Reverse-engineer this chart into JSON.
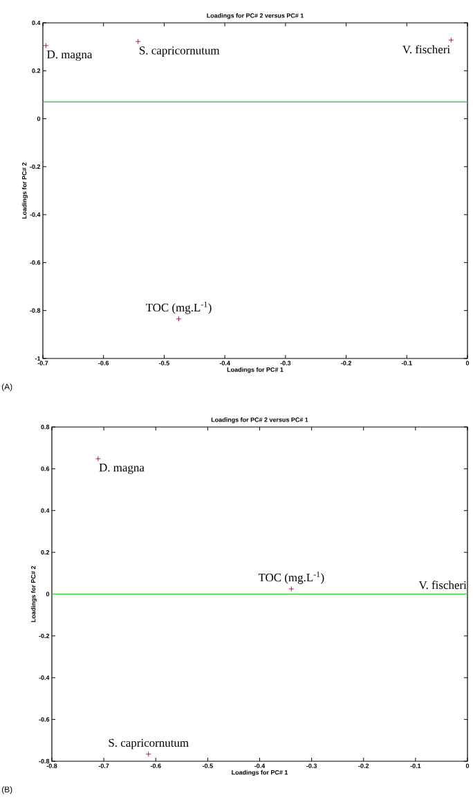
{
  "chart_data": [
    {
      "type": "scatter",
      "title": "Loadings for PC# 2 versus PC# 1",
      "xlabel": "Loadings for PC# 1",
      "ylabel": "Loadings for PC# 2",
      "x": [
        -0.695,
        -0.543,
        -0.027,
        -0.476
      ],
      "values": [
        0.305,
        0.322,
        0.328,
        -0.835
      ],
      "color": "#a0203a",
      "marker": "cross",
      "xlim": [
        -0.7,
        0
      ],
      "xticks": [
        -0.7,
        -0.6,
        -0.5,
        -0.4,
        -0.3,
        -0.2,
        -0.1,
        0
      ],
      "ylim": [
        -1,
        0.4
      ],
      "yticks": [
        -1,
        -0.8,
        -0.6,
        -0.4,
        -0.2,
        0,
        0.2,
        0.4
      ],
      "ref_lines": [
        {
          "axis": "y",
          "value": 0.07,
          "color": "#33dd33"
        }
      ],
      "annotations": [
        {
          "text": "D. magna",
          "x": -0.695,
          "y": 0.305
        },
        {
          "text": "S. capricornutum",
          "x": -0.543,
          "y": 0.322
        },
        {
          "text": "V. fischeri",
          "x": -0.027,
          "y": 0.328
        },
        {
          "text": "TOC (mg.L$^{-1}$)",
          "x": -0.476,
          "y": -0.835
        },
        "(A)"
      ]
    },
    {
      "type": "scatter",
      "title": "Loadings for PC# 2 versus PC# 1",
      "xlabel": "Loadings for PC# 1",
      "ylabel": "Loadings for PC# 2",
      "x": [
        -0.711,
        -0.339,
        -0.614
      ],
      "values": [
        0.648,
        0.025,
        -0.766
      ],
      "color": "#a0203a",
      "marker": "cross",
      "xlim": [
        -0.8,
        0
      ],
      "xticks": [
        -0.8,
        -0.7,
        -0.6,
        -0.5,
        -0.4,
        -0.3,
        -0.2,
        -0.1,
        0
      ],
      "ylim": [
        -0.8,
        0.8
      ],
      "yticks": [
        -0.8,
        -0.6,
        -0.4,
        -0.2,
        0,
        0.2,
        0.4,
        0.6,
        0.8
      ],
      "ref_lines": [
        {
          "axis": "y",
          "value": 0,
          "color": "#33dd33"
        }
      ],
      "annotations": [
        {
          "text": "D. magna",
          "x": -0.711,
          "y": 0.648
        },
        {
          "text": "TOC (mg.L$^{-1}$)",
          "x": -0.339,
          "y": 0.025
        },
        "V. fischeri",
        {
          "text": "S. capricornutum",
          "x": -0.614,
          "y": -0.766
        },
        "(B)"
      ]
    }
  ]
}
